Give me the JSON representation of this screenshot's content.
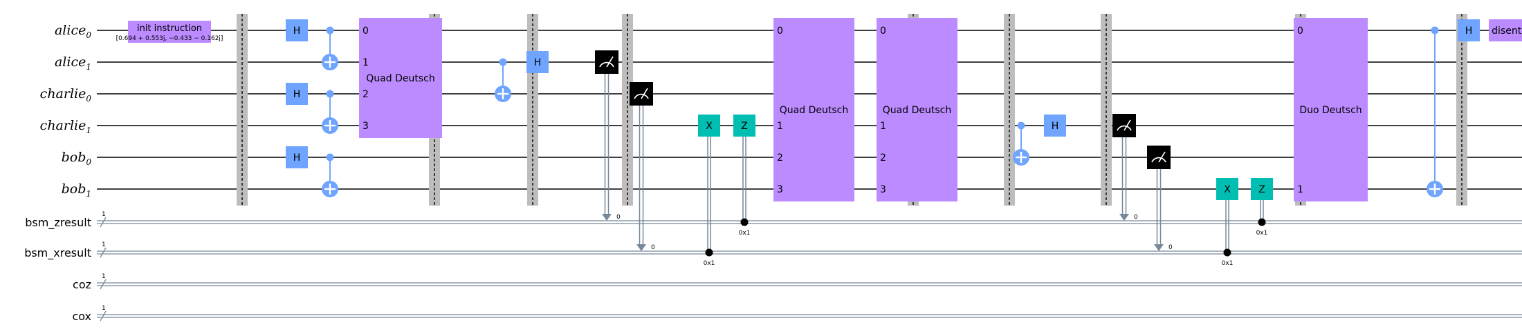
{
  "qubits": [
    {
      "base": "alice",
      "sub": "0"
    },
    {
      "base": "alice",
      "sub": "1"
    },
    {
      "base": "charlie",
      "sub": "0"
    },
    {
      "base": "charlie",
      "sub": "1"
    },
    {
      "base": "bob",
      "sub": "0"
    },
    {
      "base": "bob",
      "sub": "1"
    }
  ],
  "clbits": [
    {
      "name": "bsm_zresult",
      "size": "1"
    },
    {
      "name": "bsm_xresult",
      "size": "1"
    },
    {
      "name": "coz",
      "size": "1"
    },
    {
      "name": "cox",
      "size": "1"
    }
  ],
  "gates": {
    "init": {
      "label": "init instruction",
      "params": "[0.694 + 0.553j, −0.433 − 0.162j]"
    },
    "h": "H",
    "x": "X",
    "z": "Z",
    "quad": "Quad Deutsch",
    "duo": "Duo Deutsch",
    "disentangler": "disentangler"
  },
  "port_labels": {
    "quad": [
      "0",
      "1",
      "2",
      "3"
    ],
    "duo": [
      "0",
      "1"
    ]
  },
  "condition_value": "0x1",
  "measure_bit": "0",
  "colors": {
    "h_gate": "#6fa4ff",
    "custom_gate": "#bb8bff",
    "pauli_gate": "#00bfb2",
    "measure": "#000000",
    "barrier": "#bdbdbd",
    "wire": "#000000",
    "classical_wire": "#778899"
  }
}
